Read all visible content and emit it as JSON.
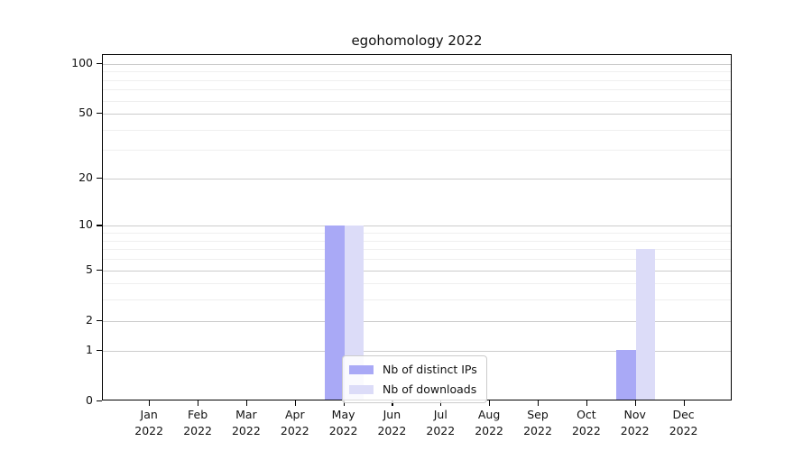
{
  "title": "egohomology 2022",
  "chart_data": {
    "type": "bar",
    "title": "egohomology 2022",
    "months": [
      "Jan",
      "Feb",
      "Mar",
      "Apr",
      "May",
      "Jun",
      "Jul",
      "Aug",
      "Sep",
      "Oct",
      "Nov",
      "Dec"
    ],
    "year": "2022",
    "series": [
      {
        "name": "Nb of distinct IPs",
        "color": "#a9a9f6",
        "values": [
          0,
          0,
          0,
          0,
          10,
          0,
          0,
          0,
          0,
          0,
          1,
          0
        ]
      },
      {
        "name": "Nb of downloads",
        "color": "#dcdcf8",
        "values": [
          0,
          0,
          0,
          0,
          10,
          0,
          0,
          0,
          0,
          0,
          7,
          0
        ]
      }
    ],
    "y_axis": {
      "scale": "log1p",
      "major_ticks": [
        0,
        1,
        2,
        5,
        10,
        20,
        50,
        100
      ],
      "minor_ticks": [
        3,
        4,
        6,
        7,
        8,
        9,
        30,
        40,
        60,
        70,
        80,
        90
      ],
      "ylim": [
        0,
        112
      ]
    },
    "grid": "horizontal-on",
    "legend_position": "lower-center"
  },
  "colors": {
    "spine": "#000000",
    "grid_major": "#cccccc",
    "grid_minor": "#efefef",
    "background": "#ffffff"
  }
}
